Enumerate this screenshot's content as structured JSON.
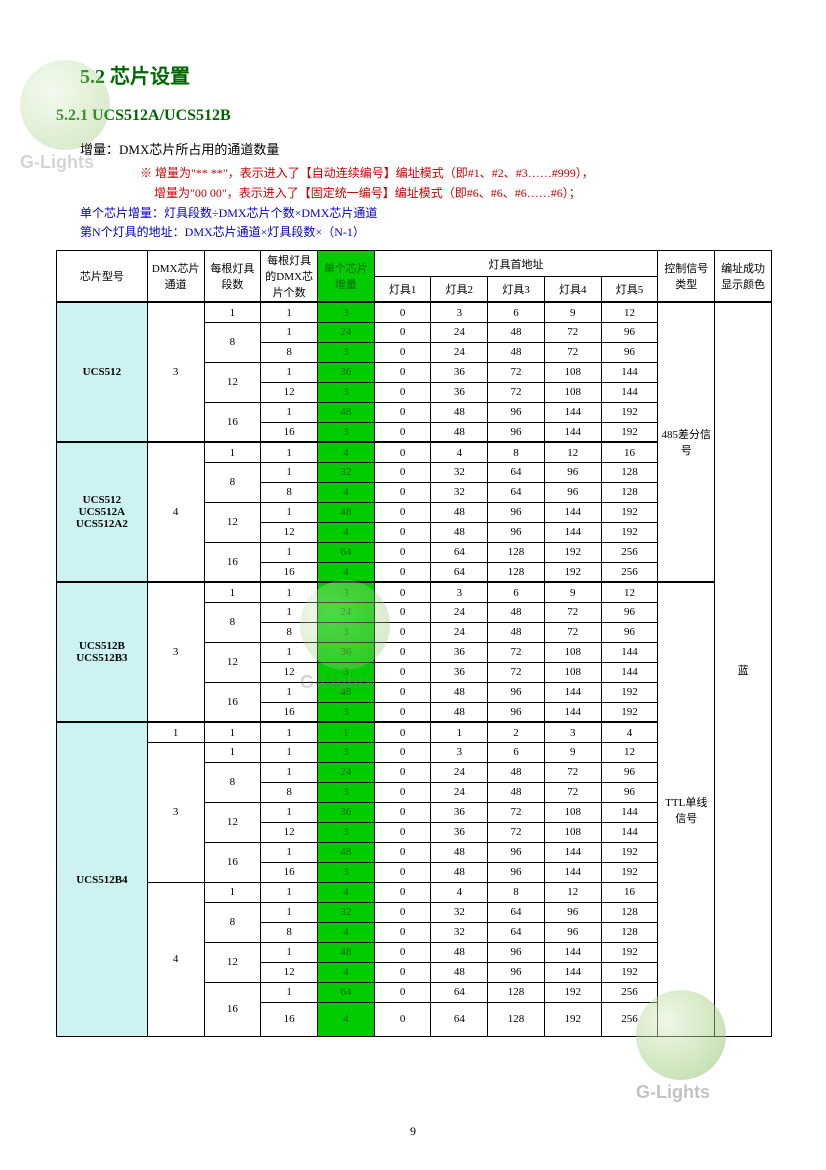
{
  "section_title": "5.2 芯片设置",
  "subsection_title": "5.2.1 UCS512A/UCS512B",
  "intro": "增量：DMX芯片所占用的通道数量",
  "note1": "※ 增量为\"** **\"，表示进入了【自动连续编号】编址模式（即#1、#2、#3……#999），",
  "note2": "增量为\"00 00\"，表示进入了【固定统一编号】编址模式（即#6、#6、#6……#6）；",
  "formula1": "单个芯片增量：灯具段数÷DMX芯片个数×DMX芯片通道",
  "formula2": "第N个灯具的地址：DMX芯片通道×灯具段数×（N-1）",
  "headers": {
    "chip": "芯片型号",
    "dmx_ch": "DMX芯片通道",
    "seg": "每根灯具段数",
    "per_seg": "每根灯具的DMX芯片个数",
    "inc": "单个芯片增量",
    "first_addr": "灯具首地址",
    "l1": "灯具1",
    "l2": "灯具2",
    "l3": "灯具3",
    "l4": "灯具4",
    "l5": "灯具5",
    "sig": "控制信号类型",
    "color": "编址成功显示颜色"
  },
  "sig_485": "485差分信号",
  "sig_ttl": "TTL单线信号",
  "blue": "蓝",
  "page": "9",
  "watermark": "G-Lights",
  "groups": [
    {
      "chip": "UCS512",
      "dmx": "3",
      "rows": [
        {
          "seg": "1",
          "cnt": "1",
          "inc": "3",
          "a": [
            "0",
            "3",
            "6",
            "9",
            "12"
          ]
        },
        {
          "seg": "8",
          "cnt": "1",
          "inc": "24",
          "a": [
            "0",
            "24",
            "48",
            "72",
            "96"
          ]
        },
        {
          "seg": "",
          "cnt": "8",
          "inc": "3",
          "a": [
            "0",
            "24",
            "48",
            "72",
            "96"
          ]
        },
        {
          "seg": "12",
          "cnt": "1",
          "inc": "36",
          "a": [
            "0",
            "36",
            "72",
            "108",
            "144"
          ]
        },
        {
          "seg": "",
          "cnt": "12",
          "inc": "3",
          "a": [
            "0",
            "36",
            "72",
            "108",
            "144"
          ]
        },
        {
          "seg": "16",
          "cnt": "1",
          "inc": "48",
          "a": [
            "0",
            "48",
            "96",
            "144",
            "192"
          ]
        },
        {
          "seg": "",
          "cnt": "16",
          "inc": "3",
          "a": [
            "0",
            "48",
            "96",
            "144",
            "192"
          ]
        }
      ]
    },
    {
      "chip": "UCS512\nUCS512A\nUCS512A2",
      "dmx": "4",
      "rows": [
        {
          "seg": "1",
          "cnt": "1",
          "inc": "4",
          "a": [
            "0",
            "4",
            "8",
            "12",
            "16"
          ]
        },
        {
          "seg": "8",
          "cnt": "1",
          "inc": "32",
          "a": [
            "0",
            "32",
            "64",
            "96",
            "128"
          ]
        },
        {
          "seg": "",
          "cnt": "8",
          "inc": "4",
          "a": [
            "0",
            "32",
            "64",
            "96",
            "128"
          ]
        },
        {
          "seg": "12",
          "cnt": "1",
          "inc": "48",
          "a": [
            "0",
            "48",
            "96",
            "144",
            "192"
          ]
        },
        {
          "seg": "",
          "cnt": "12",
          "inc": "4",
          "a": [
            "0",
            "48",
            "96",
            "144",
            "192"
          ]
        },
        {
          "seg": "16",
          "cnt": "1",
          "inc": "64",
          "a": [
            "0",
            "64",
            "128",
            "192",
            "256"
          ]
        },
        {
          "seg": "",
          "cnt": "16",
          "inc": "4",
          "a": [
            "0",
            "64",
            "128",
            "192",
            "256"
          ]
        }
      ]
    },
    {
      "chip": "UCS512B\nUCS512B3",
      "dmx": "3",
      "rows": [
        {
          "seg": "1",
          "cnt": "1",
          "inc": "3",
          "a": [
            "0",
            "3",
            "6",
            "9",
            "12"
          ]
        },
        {
          "seg": "8",
          "cnt": "1",
          "inc": "24",
          "a": [
            "0",
            "24",
            "48",
            "72",
            "96"
          ]
        },
        {
          "seg": "",
          "cnt": "8",
          "inc": "3",
          "a": [
            "0",
            "24",
            "48",
            "72",
            "96"
          ]
        },
        {
          "seg": "12",
          "cnt": "1",
          "inc": "36",
          "a": [
            "0",
            "36",
            "72",
            "108",
            "144"
          ]
        },
        {
          "seg": "",
          "cnt": "12",
          "inc": "3",
          "a": [
            "0",
            "36",
            "72",
            "108",
            "144"
          ]
        },
        {
          "seg": "16",
          "cnt": "1",
          "inc": "48",
          "a": [
            "0",
            "48",
            "96",
            "144",
            "192"
          ]
        },
        {
          "seg": "",
          "cnt": "16",
          "inc": "3",
          "a": [
            "0",
            "48",
            "96",
            "144",
            "192"
          ]
        }
      ]
    },
    {
      "chip": "UCS512B4",
      "dmx_multi": true,
      "sub": [
        {
          "dmx": "1",
          "rows": [
            {
              "seg": "1",
              "cnt": "1",
              "inc": "1",
              "a": [
                "0",
                "1",
                "2",
                "3",
                "4"
              ]
            }
          ]
        },
        {
          "dmx": "3",
          "rows": [
            {
              "seg": "1",
              "cnt": "1",
              "inc": "3",
              "a": [
                "0",
                "3",
                "6",
                "9",
                "12"
              ]
            },
            {
              "seg": "8",
              "cnt": "1",
              "inc": "24",
              "a": [
                "0",
                "24",
                "48",
                "72",
                "96"
              ]
            },
            {
              "seg": "",
              "cnt": "8",
              "inc": "3",
              "a": [
                "0",
                "24",
                "48",
                "72",
                "96"
              ]
            },
            {
              "seg": "12",
              "cnt": "1",
              "inc": "36",
              "a": [
                "0",
                "36",
                "72",
                "108",
                "144"
              ]
            },
            {
              "seg": "",
              "cnt": "12",
              "inc": "3",
              "a": [
                "0",
                "36",
                "72",
                "108",
                "144"
              ]
            },
            {
              "seg": "16",
              "cnt": "1",
              "inc": "48",
              "a": [
                "0",
                "48",
                "96",
                "144",
                "192"
              ]
            },
            {
              "seg": "",
              "cnt": "16",
              "inc": "3",
              "a": [
                "0",
                "48",
                "96",
                "144",
                "192"
              ]
            }
          ]
        },
        {
          "dmx": "4",
          "rows": [
            {
              "seg": "1",
              "cnt": "1",
              "inc": "4",
              "a": [
                "0",
                "4",
                "8",
                "12",
                "16"
              ]
            },
            {
              "seg": "8",
              "cnt": "1",
              "inc": "32",
              "a": [
                "0",
                "32",
                "64",
                "96",
                "128"
              ]
            },
            {
              "seg": "",
              "cnt": "8",
              "inc": "4",
              "a": [
                "0",
                "32",
                "64",
                "96",
                "128"
              ]
            },
            {
              "seg": "12",
              "cnt": "1",
              "inc": "48",
              "a": [
                "0",
                "48",
                "96",
                "144",
                "192"
              ]
            },
            {
              "seg": "",
              "cnt": "12",
              "inc": "4",
              "a": [
                "0",
                "48",
                "96",
                "144",
                "192"
              ]
            },
            {
              "seg": "16",
              "cnt": "1",
              "inc": "64",
              "a": [
                "0",
                "64",
                "128",
                "192",
                "256"
              ]
            },
            {
              "seg": "",
              "cnt": "16",
              "inc": "4",
              "a": [
                "0",
                "64",
                "128",
                "192",
                "256"
              ],
              "tall": true
            }
          ]
        }
      ]
    }
  ]
}
